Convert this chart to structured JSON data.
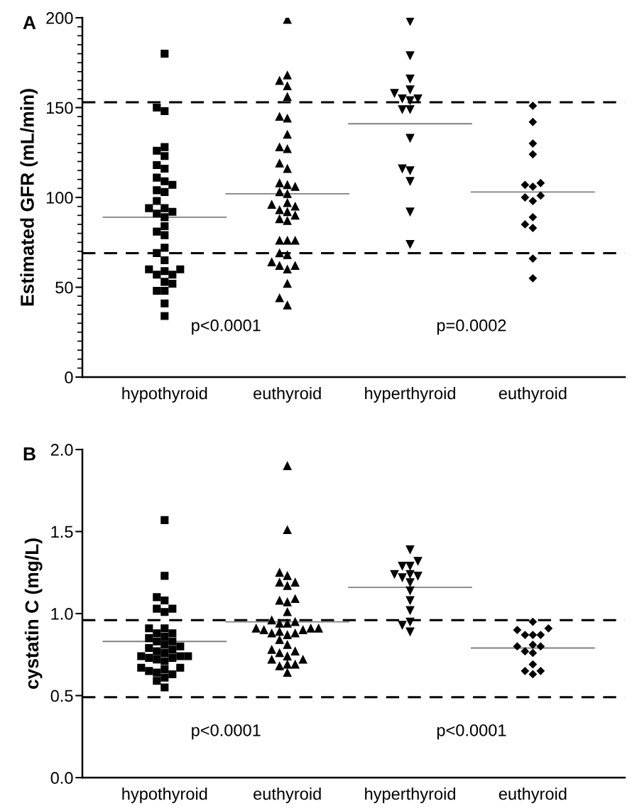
{
  "chart_data": [
    {
      "type": "scatter",
      "title": "A",
      "ylabel": "Estimated GFR (mL/min)",
      "categories": [
        "hypothyroid",
        "euthyroid",
        "hyperthyroid",
        "euthyroid"
      ],
      "ylim": [
        0,
        200
      ],
      "yticks": [
        0,
        50,
        100,
        150,
        200
      ],
      "grid": false,
      "series": [
        {
          "color": "#000000",
          "marker": "square",
          "x": [
            "hypothyroid",
            "hypothyroid",
            "hypothyroid",
            "hypothyroid",
            "hypothyroid",
            "hypothyroid",
            "hypothyroid",
            "hypothyroid",
            "hypothyroid",
            "hypothyroid",
            "hypothyroid",
            "hypothyroid",
            "hypothyroid",
            "hypothyroid",
            "hypothyroid",
            "hypothyroid",
            "hypothyroid",
            "hypothyroid",
            "hypothyroid",
            "hypothyroid",
            "hypothyroid",
            "hypothyroid",
            "hypothyroid",
            "hypothyroid",
            "hypothyroid",
            "hypothyroid",
            "hypothyroid",
            "hypothyroid",
            "hypothyroid",
            "hypothyroid",
            "hypothyroid",
            "hypothyroid",
            "hypothyroid",
            "hypothyroid",
            "hypothyroid",
            "hypothyroid"
          ],
          "values": [
            180,
            150,
            148,
            128,
            126,
            123,
            118,
            116,
            111,
            109,
            107,
            104,
            103,
            98,
            94,
            91,
            92,
            94,
            89,
            84,
            81,
            79,
            72,
            69,
            65,
            60,
            59,
            60,
            57,
            57,
            53,
            52,
            48,
            48,
            41,
            34
          ]
        },
        {
          "color": "#000000",
          "marker": "triangle",
          "x": [
            "euthyroid",
            "euthyroid",
            "euthyroid",
            "euthyroid",
            "euthyroid",
            "euthyroid",
            "euthyroid",
            "euthyroid",
            "euthyroid",
            "euthyroid",
            "euthyroid",
            "euthyroid",
            "euthyroid",
            "euthyroid",
            "euthyroid",
            "euthyroid",
            "euthyroid",
            "euthyroid",
            "euthyroid",
            "euthyroid",
            "euthyroid",
            "euthyroid",
            "euthyroid",
            "euthyroid",
            "euthyroid",
            "euthyroid",
            "euthyroid",
            "euthyroid",
            "euthyroid",
            "euthyroid",
            "euthyroid",
            "euthyroid",
            "euthyroid",
            "euthyroid",
            "euthyroid",
            "euthyroid",
            "euthyroid"
          ],
          "values": [
            199,
            168,
            165,
            162,
            156,
            145,
            144,
            135,
            128,
            127,
            119,
            116,
            107,
            108,
            106,
            102,
            103,
            95,
            97,
            96,
            92,
            93,
            90,
            88,
            87,
            76,
            76,
            76,
            69,
            68,
            62,
            60,
            62,
            64,
            52,
            44,
            40
          ]
        },
        {
          "color": "#000000",
          "marker": "triangle_down",
          "x": [
            "hyperthyroid",
            "hyperthyroid",
            "hyperthyroid",
            "hyperthyroid",
            "hyperthyroid",
            "hyperthyroid",
            "hyperthyroid",
            "hyperthyroid",
            "hyperthyroid",
            "hyperthyroid",
            "hyperthyroid",
            "hyperthyroid",
            "hyperthyroid",
            "hyperthyroid",
            "hyperthyroid",
            "hyperthyroid"
          ],
          "values": [
            198,
            179,
            166,
            160,
            158,
            155,
            154,
            155,
            149,
            149,
            133,
            116,
            115,
            109,
            92,
            74
          ]
        },
        {
          "color": "#000000",
          "marker": "diamond",
          "values": [
            null,
            null,
            null,
            151
          ]
        },
        {
          "color": "#000000",
          "marker": "diamond",
          "values": [
            null,
            null,
            null,
            142
          ]
        },
        {
          "color": "#000000",
          "marker": "diamond",
          "values": [
            null,
            null,
            null,
            130
          ]
        },
        {
          "color": "#000000",
          "marker": "diamond",
          "values": [
            null,
            null,
            null,
            124
          ]
        },
        {
          "color": "#000000",
          "marker": "diamond",
          "values": [
            null,
            null,
            null,
            107
          ]
        },
        {
          "color": "#000000",
          "marker": "diamond",
          "values": [
            null,
            null,
            null,
            106
          ]
        },
        {
          "color": "#000000",
          "marker": "diamond",
          "values": [
            null,
            null,
            null,
            108
          ]
        },
        {
          "color": "#000000",
          "marker": "diamond",
          "values": [
            null,
            null,
            null,
            101
          ]
        },
        {
          "color": "#000000",
          "marker": "diamond",
          "values": [
            null,
            null,
            null,
            98
          ]
        },
        {
          "color": "#000000",
          "marker": "diamond",
          "values": [
            null,
            null,
            null,
            100
          ]
        },
        {
          "color": "#000000",
          "marker": "diamond",
          "values": [
            null,
            null,
            null,
            89
          ]
        },
        {
          "color": "#000000",
          "marker": "diamond",
          "values": [
            null,
            null,
            null,
            85
          ]
        },
        {
          "color": "#000000",
          "marker": "diamond",
          "values": [
            null,
            null,
            null,
            83
          ]
        },
        {
          "color": "#000000",
          "marker": "diamond",
          "values": [
            null,
            null,
            null,
            66
          ]
        },
        {
          "color": "#000000",
          "marker": "diamond",
          "values": [
            null,
            null,
            null,
            55
          ]
        }
      ],
      "ref_lines": [
        {
          "axis": "y",
          "value": 153,
          "color": "#000000",
          "line_style": "dashed"
        },
        {
          "axis": "y",
          "value": 69,
          "color": "#000000",
          "line_style": "dashed"
        },
        {
          "axis": "y",
          "value": 89,
          "color": "#808080",
          "line_style": "solid"
        },
        {
          "axis": "y",
          "value": 102,
          "color": "#808080",
          "line_style": "solid"
        },
        {
          "axis": "y",
          "value": 141,
          "color": "#808080",
          "line_style": "solid"
        },
        {
          "axis": "y",
          "value": 103,
          "color": "#808080",
          "line_style": "solid"
        }
      ],
      "annotations": [
        "p<0.0001",
        "p=0.0002"
      ]
    },
    {
      "type": "scatter",
      "title": "B",
      "ylabel": "cystatin C (mg/L)",
      "categories": [
        "hypothyroid",
        "euthyroid",
        "hyperthyroid",
        "euthyroid"
      ],
      "ylim": [
        0,
        2.0
      ],
      "yticks": [
        {
          "value": 0,
          "label": "0.0"
        },
        0.5,
        {
          "value": 1,
          "label": "1.0"
        },
        1.5,
        {
          "value": 2,
          "label": "2.0"
        }
      ],
      "grid": false,
      "series": [
        {
          "color": "#000000",
          "marker": "square",
          "x": [
            "hypothyroid",
            "hypothyroid",
            "hypothyroid",
            "hypothyroid",
            "hypothyroid",
            "hypothyroid",
            "hypothyroid",
            "hypothyroid",
            "hypothyroid",
            "hypothyroid",
            "hypothyroid",
            "hypothyroid",
            "hypothyroid",
            "hypothyroid",
            "hypothyroid",
            "hypothyroid",
            "hypothyroid",
            "hypothyroid",
            "hypothyroid",
            "hypothyroid",
            "hypothyroid",
            "hypothyroid",
            "hypothyroid",
            "hypothyroid",
            "hypothyroid",
            "hypothyroid",
            "hypothyroid",
            "hypothyroid",
            "hypothyroid",
            "hypothyroid",
            "hypothyroid",
            "hypothyroid",
            "hypothyroid",
            "hypothyroid",
            "hypothyroid",
            "hypothyroid",
            "hypothyroid"
          ],
          "values": [
            1.57,
            1.23,
            1.1,
            1.08,
            1.03,
            1.01,
            1.03,
            0.91,
            0.91,
            0.88,
            0.86,
            0.88,
            0.85,
            0.83,
            0.83,
            0.81,
            0.8,
            0.79,
            0.78,
            0.76,
            0.77,
            0.74,
            0.73,
            0.73,
            0.74,
            0.74,
            0.72,
            0.71,
            0.67,
            0.67,
            0.66,
            0.65,
            0.63,
            0.64,
            0.61,
            0.59,
            0.55
          ]
        },
        {
          "color": "#000000",
          "marker": "triangle",
          "x": [
            "euthyroid",
            "euthyroid",
            "euthyroid",
            "euthyroid",
            "euthyroid",
            "euthyroid",
            "euthyroid",
            "euthyroid",
            "euthyroid",
            "euthyroid",
            "euthyroid",
            "euthyroid",
            "euthyroid",
            "euthyroid",
            "euthyroid",
            "euthyroid",
            "euthyroid",
            "euthyroid",
            "euthyroid",
            "euthyroid",
            "euthyroid",
            "euthyroid",
            "euthyroid",
            "euthyroid",
            "euthyroid",
            "euthyroid",
            "euthyroid",
            "euthyroid",
            "euthyroid",
            "euthyroid",
            "euthyroid",
            "euthyroid",
            "euthyroid",
            "euthyroid",
            "euthyroid",
            "euthyroid"
          ],
          "values": [
            1.9,
            1.51,
            1.25,
            1.23,
            1.19,
            1.17,
            1.19,
            1.08,
            1.07,
            1.09,
            1.01,
            0.96,
            0.94,
            0.94,
            0.95,
            0.91,
            0.9,
            0.9,
            0.88,
            0.87,
            0.88,
            0.89,
            0.91,
            0.91,
            0.84,
            0.81,
            0.77,
            0.74,
            0.76,
            0.78,
            0.72,
            0.69,
            0.69,
            0.72,
            0.68,
            0.64
          ]
        },
        {
          "color": "#000000",
          "marker": "triangle_down",
          "x": [
            "hyperthyroid",
            "hyperthyroid",
            "hyperthyroid",
            "hyperthyroid",
            "hyperthyroid",
            "hyperthyroid",
            "hyperthyroid",
            "hyperthyroid",
            "hyperthyroid",
            "hyperthyroid",
            "hyperthyroid",
            "hyperthyroid",
            "hyperthyroid",
            "hyperthyroid",
            "hyperthyroid"
          ],
          "values": [
            1.39,
            1.32,
            1.29,
            1.29,
            1.24,
            1.24,
            1.23,
            1.22,
            1.19,
            1.14,
            1.08,
            1.02,
            0.95,
            0.93,
            0.89
          ]
        },
        {
          "color": "#000000",
          "marker": "diamond",
          "values": [
            null,
            null,
            null,
            0.95
          ]
        },
        {
          "color": "#000000",
          "marker": "diamond",
          "values": [
            null,
            null,
            null,
            0.91
          ]
        },
        {
          "color": "#000000",
          "marker": "diamond",
          "values": [
            null,
            null,
            null,
            0.9
          ]
        },
        {
          "color": "#000000",
          "marker": "diamond",
          "values": [
            null,
            null,
            null,
            0.87
          ]
        },
        {
          "color": "#000000",
          "marker": "diamond",
          "values": [
            null,
            null,
            null,
            0.87
          ]
        },
        {
          "color": "#000000",
          "marker": "diamond",
          "values": [
            null,
            null,
            null,
            0.87
          ]
        },
        {
          "color": "#000000",
          "marker": "diamond",
          "values": [
            null,
            null,
            null,
            0.81
          ]
        },
        {
          "color": "#000000",
          "marker": "diamond",
          "values": [
            null,
            null,
            null,
            0.8
          ]
        },
        {
          "color": "#000000",
          "marker": "diamond",
          "values": [
            null,
            null,
            null,
            0.8
          ]
        },
        {
          "color": "#000000",
          "marker": "diamond",
          "values": [
            null,
            null,
            null,
            0.77
          ]
        },
        {
          "color": "#000000",
          "marker": "diamond",
          "values": [
            null,
            null,
            null,
            0.76
          ]
        },
        {
          "color": "#000000",
          "marker": "diamond",
          "values": [
            null,
            null,
            null,
            0.69
          ]
        },
        {
          "color": "#000000",
          "marker": "diamond",
          "values": [
            null,
            null,
            null,
            0.65
          ]
        },
        {
          "color": "#000000",
          "marker": "diamond",
          "values": [
            null,
            null,
            null,
            0.65
          ]
        },
        {
          "color": "#000000",
          "marker": "diamond",
          "values": [
            null,
            null,
            null,
            0.63
          ]
        }
      ],
      "ref_lines": [
        {
          "axis": "y",
          "value": 0.96,
          "color": "#000000",
          "line_style": "dashed"
        },
        {
          "axis": "y",
          "value": 0.49,
          "color": "#000000",
          "line_style": "dashed"
        },
        {
          "axis": "y",
          "value": 0.83,
          "color": "#808080",
          "line_style": "solid"
        },
        {
          "axis": "y",
          "value": 0.95,
          "color": "#808080",
          "line_style": "solid"
        },
        {
          "axis": "y",
          "value": 1.16,
          "color": "#808080",
          "line_style": "solid"
        },
        {
          "axis": "y",
          "value": 0.79,
          "color": "#808080",
          "line_style": "solid"
        }
      ],
      "annotations": [
        "p<0.0001",
        "p<0.0001"
      ]
    }
  ]
}
